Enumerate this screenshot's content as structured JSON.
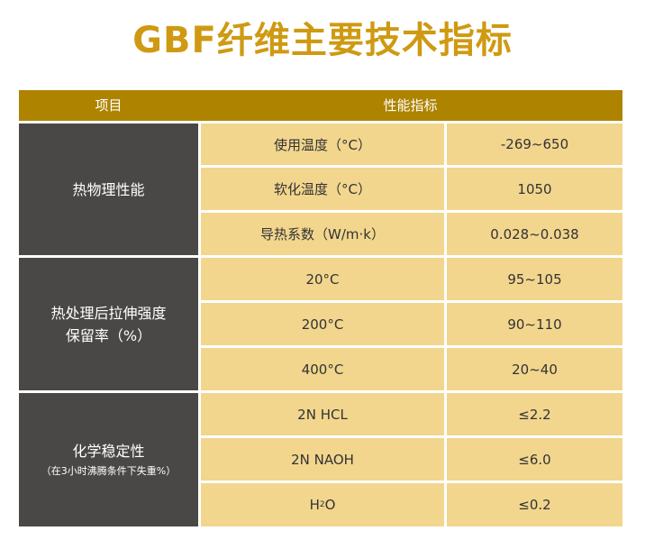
{
  "title": "GBF纤维主要技术指标",
  "header": {
    "item": "项目",
    "index": "性能指标"
  },
  "groups": [
    {
      "label": "热物理性能",
      "rows": [
        {
          "param": "使用温度（°C）",
          "value": "-269~650"
        },
        {
          "param": "软化温度（°C）",
          "value": "1050"
        },
        {
          "param": "导热系数（W/m·k）",
          "value": "0.028~0.038"
        }
      ]
    },
    {
      "label_line1": "热处理后拉伸强度",
      "label_line2": "保留率（%）",
      "rows": [
        {
          "param": "20°C",
          "value": "95~105"
        },
        {
          "param": "200°C",
          "value": "90~110"
        },
        {
          "param": "400°C",
          "value": "20~40"
        }
      ]
    },
    {
      "label": "化学稳定性",
      "note": "（在3小时沸腾条件下失重%）",
      "rows": [
        {
          "param": "2N HCL",
          "value": "≤2.2"
        },
        {
          "param": "2N NAOH",
          "value": "≤6.0"
        },
        {
          "param_main": "H",
          "param_sub": "2",
          "param_tail": "O",
          "value": "≤0.2"
        }
      ]
    }
  ]
}
